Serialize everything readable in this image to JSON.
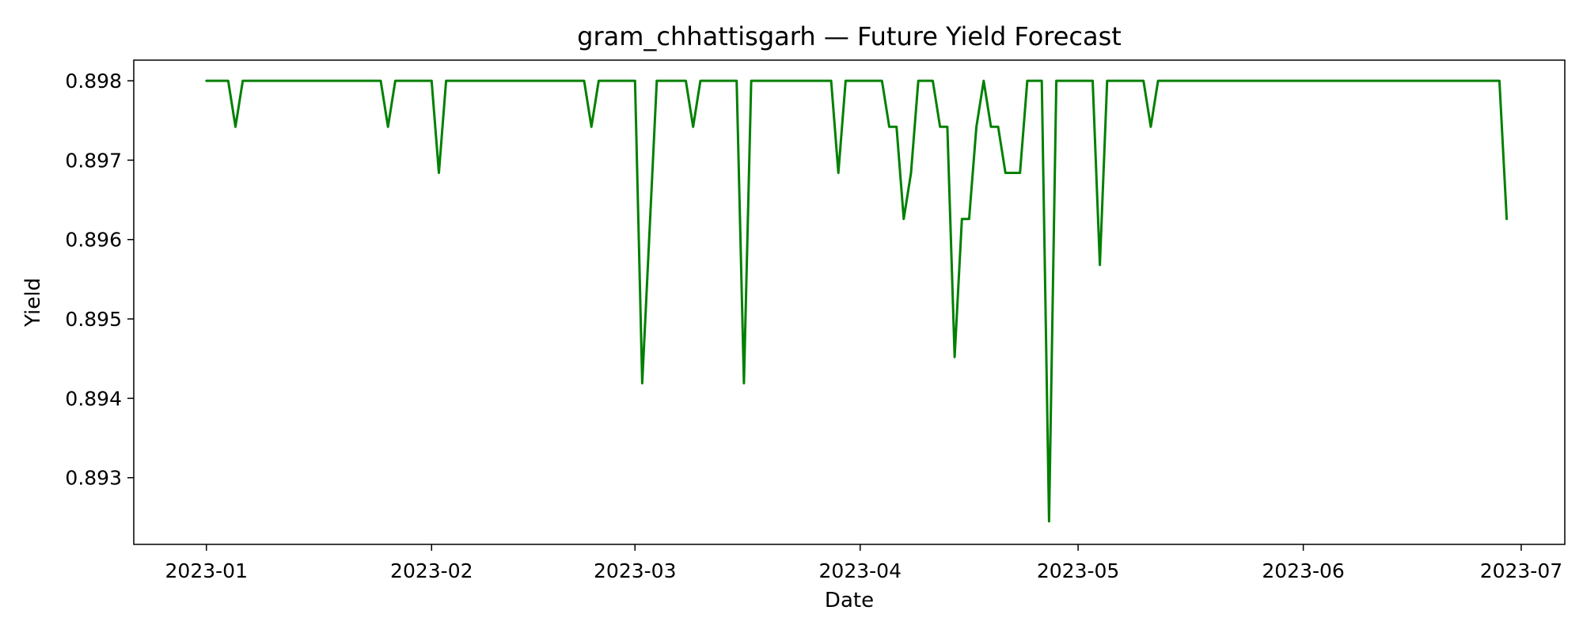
{
  "chart_data": {
    "type": "line",
    "title": "gram_chhattisgarh — Future Yield Forecast",
    "xlabel": "Date",
    "ylabel": "Yield",
    "x_ticks": [
      "2023-01",
      "2023-02",
      "2023-03",
      "2023-04",
      "2023-05",
      "2023-06",
      "2023-07"
    ],
    "y_ticks": [
      "0.893",
      "0.894",
      "0.895",
      "0.896",
      "0.897",
      "0.898"
    ],
    "xlim": [
      "2022-12-22",
      "2023-07-07"
    ],
    "ylim": [
      0.89216,
      0.89826
    ],
    "grid": false,
    "legend": "none",
    "series": [
      {
        "color": "#008000",
        "points": [
          [
            "2023-01-01",
            0.898
          ],
          [
            "2023-01-04",
            0.898
          ],
          [
            "2023-01-05",
            0.89742
          ],
          [
            "2023-01-06",
            0.898
          ],
          [
            "2023-01-25",
            0.898
          ],
          [
            "2023-01-26",
            0.89742
          ],
          [
            "2023-01-27",
            0.898
          ],
          [
            "2023-02-01",
            0.898
          ],
          [
            "2023-02-02",
            0.89684
          ],
          [
            "2023-02-03",
            0.898
          ],
          [
            "2023-02-22",
            0.898
          ],
          [
            "2023-02-23",
            0.89742
          ],
          [
            "2023-02-24",
            0.898
          ],
          [
            "2023-03-01",
            0.898
          ],
          [
            "2023-03-02",
            0.89419
          ],
          [
            "2023-03-04",
            0.898
          ],
          [
            "2023-03-08",
            0.898
          ],
          [
            "2023-03-09",
            0.89742
          ],
          [
            "2023-03-10",
            0.898
          ],
          [
            "2023-03-15",
            0.898
          ],
          [
            "2023-03-16",
            0.89419
          ],
          [
            "2023-03-17",
            0.898
          ],
          [
            "2023-03-28",
            0.898
          ],
          [
            "2023-03-29",
            0.89684
          ],
          [
            "2023-03-30",
            0.898
          ],
          [
            "2023-04-04",
            0.898
          ],
          [
            "2023-04-05",
            0.89742
          ],
          [
            "2023-04-06",
            0.89742
          ],
          [
            "2023-04-07",
            0.89626
          ],
          [
            "2023-04-08",
            0.89684
          ],
          [
            "2023-04-09",
            0.898
          ],
          [
            "2023-04-11",
            0.898
          ],
          [
            "2023-04-12",
            0.89742
          ],
          [
            "2023-04-13",
            0.89742
          ],
          [
            "2023-04-14",
            0.89452
          ],
          [
            "2023-04-15",
            0.89626
          ],
          [
            "2023-04-16",
            0.89626
          ],
          [
            "2023-04-17",
            0.89742
          ],
          [
            "2023-04-18",
            0.898
          ],
          [
            "2023-04-19",
            0.89742
          ],
          [
            "2023-04-20",
            0.89742
          ],
          [
            "2023-04-21",
            0.89684
          ],
          [
            "2023-04-23",
            0.89684
          ],
          [
            "2023-04-24",
            0.898
          ],
          [
            "2023-04-26",
            0.898
          ],
          [
            "2023-04-27",
            0.89245
          ],
          [
            "2023-04-28",
            0.898
          ],
          [
            "2023-05-03",
            0.898
          ],
          [
            "2023-05-04",
            0.89568
          ],
          [
            "2023-05-05",
            0.898
          ],
          [
            "2023-05-10",
            0.898
          ],
          [
            "2023-05-11",
            0.89742
          ],
          [
            "2023-05-12",
            0.898
          ],
          [
            "2023-06-28",
            0.898
          ],
          [
            "2023-06-29",
            0.89626
          ]
        ]
      }
    ]
  }
}
